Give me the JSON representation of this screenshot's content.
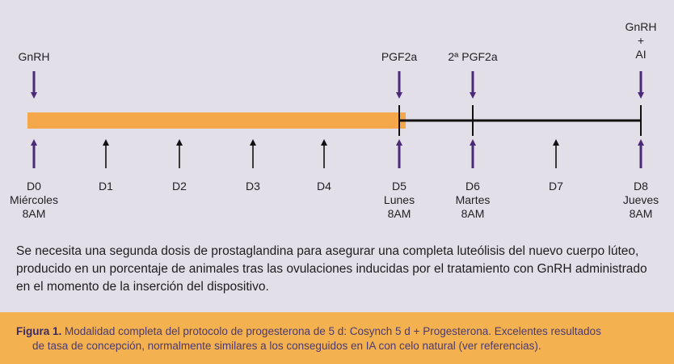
{
  "timeline": {
    "top_labels": {
      "d0": "GnRH",
      "d5": "PGF2a",
      "d6": "2ª PGF2a",
      "d8_line1": "GnRH",
      "d8_line2": "+",
      "d8_line3": "AI"
    },
    "days": [
      {
        "day": "D0",
        "weekday": "Miércoles",
        "time": "8AM"
      },
      {
        "day": "D1"
      },
      {
        "day": "D2"
      },
      {
        "day": "D3"
      },
      {
        "day": "D4"
      },
      {
        "day": "D5",
        "weekday": "Lunes",
        "time": "8AM"
      },
      {
        "day": "D6",
        "weekday": "Martes",
        "time": "8AM"
      },
      {
        "day": "D7"
      },
      {
        "day": "D8",
        "weekday": "Jueves",
        "time": "8AM"
      }
    ]
  },
  "colors": {
    "background": "#e2dfe9",
    "bar": "#f5a84a",
    "arrow_purple": "#4b2a78",
    "caption_band": "#f4b14f"
  },
  "description": "Se necesita una segunda dosis de prostaglandina para asegurar una completa luteólisis del nuevo cuerpo lúteo, producido en un porcentaje de animales tras las ovulaciones inducidas por el tratamiento con GnRH administrado en el momento de la inserción del dispositivo.",
  "caption": {
    "label": "Figura 1.",
    "line1": "Modalidad completa del protocolo de progesterona de 5 d: Cosynch 5 d + Progesterona. Excelentes resultados",
    "line2": "de tasa de  concepción, normalmente similares a los conseguidos en IA con celo natural (ver referencias)."
  }
}
